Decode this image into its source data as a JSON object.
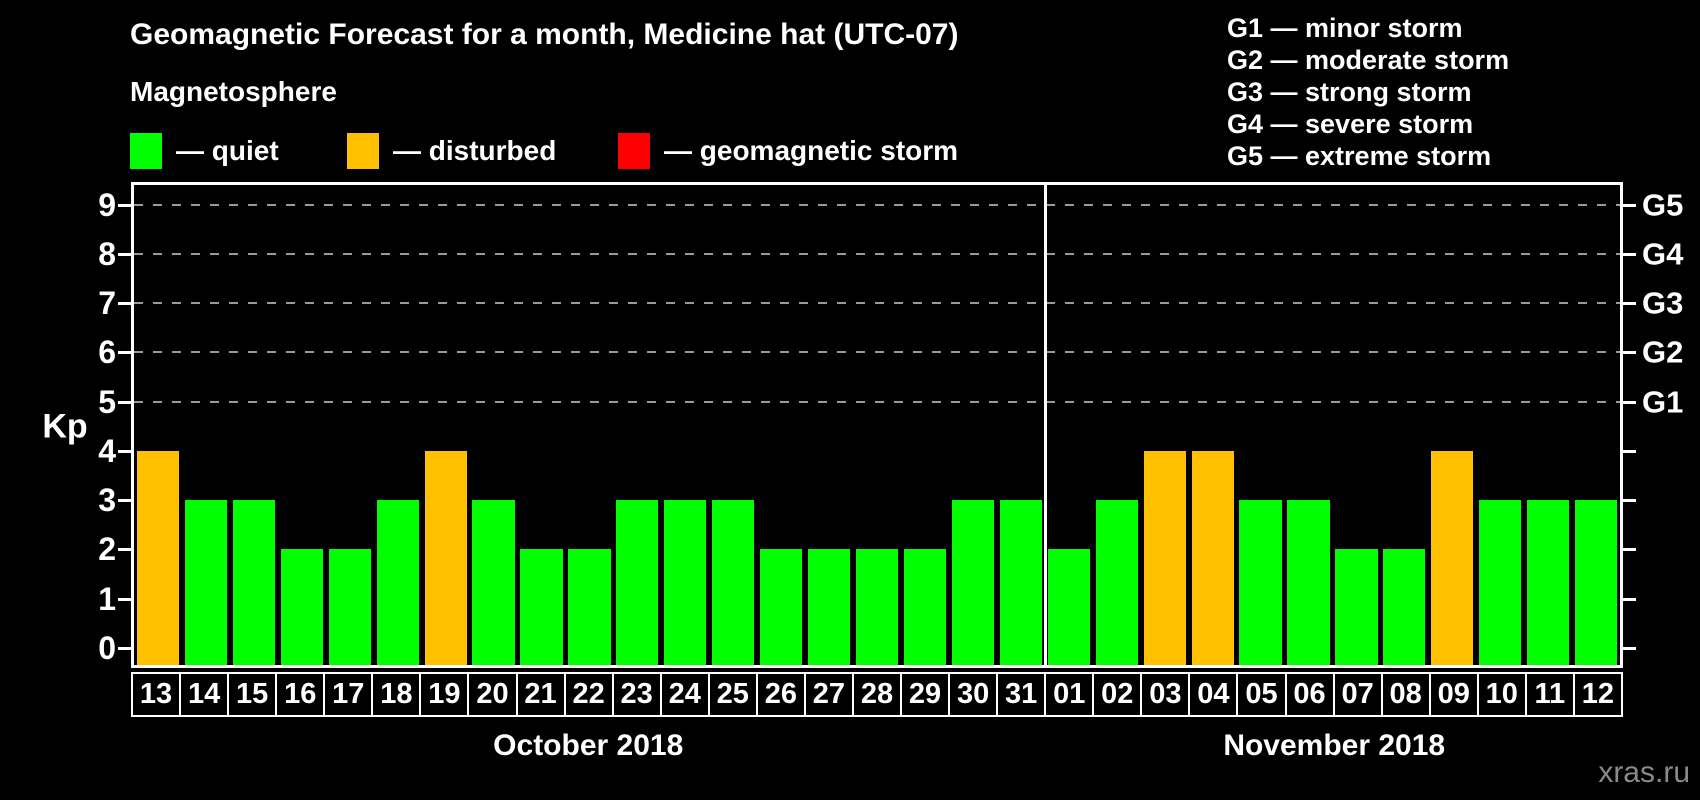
{
  "header": {
    "title": "Geomagnetic Forecast for a month, Medicine hat (UTC-07)",
    "subtitle": "Magnetosphere",
    "legend": [
      {
        "status": "quiet",
        "label": "— quiet"
      },
      {
        "status": "disturbed",
        "label": "— disturbed"
      },
      {
        "status": "storm",
        "label": "— geomagnetic storm"
      }
    ],
    "g_scale_legend": [
      "G1 — minor storm",
      "G2 — moderate storm",
      "G3 — strong storm",
      "G4 — severe storm",
      "G5 — extreme storm"
    ]
  },
  "watermark": "xras.ru",
  "chart_data": {
    "type": "bar",
    "title": "Geomagnetic Forecast for a month, Medicine hat (UTC-07)",
    "ylabel": "Kp",
    "ylim": [
      -0.35,
      9.4
    ],
    "yticks": [
      0,
      1,
      2,
      3,
      4,
      5,
      6,
      7,
      8,
      9
    ],
    "gridline_levels": [
      5,
      6,
      7,
      8,
      9
    ],
    "right_axis": [
      {
        "kp": 5,
        "label": "G1"
      },
      {
        "kp": 6,
        "label": "G2"
      },
      {
        "kp": 7,
        "label": "G3"
      },
      {
        "kp": 8,
        "label": "G4"
      },
      {
        "kp": 9,
        "label": "G5"
      }
    ],
    "status_colors": {
      "quiet": "#00ff00",
      "disturbed": "#ffc000",
      "storm": "#ff0000"
    },
    "months": [
      {
        "label": "October 2018",
        "days": [
          {
            "day": "13",
            "kp": 4,
            "status": "disturbed"
          },
          {
            "day": "14",
            "kp": 3,
            "status": "quiet"
          },
          {
            "day": "15",
            "kp": 3,
            "status": "quiet"
          },
          {
            "day": "16",
            "kp": 2,
            "status": "quiet"
          },
          {
            "day": "17",
            "kp": 2,
            "status": "quiet"
          },
          {
            "day": "18",
            "kp": 3,
            "status": "quiet"
          },
          {
            "day": "19",
            "kp": 4,
            "status": "disturbed"
          },
          {
            "day": "20",
            "kp": 3,
            "status": "quiet"
          },
          {
            "day": "21",
            "kp": 2,
            "status": "quiet"
          },
          {
            "day": "22",
            "kp": 2,
            "status": "quiet"
          },
          {
            "day": "23",
            "kp": 3,
            "status": "quiet"
          },
          {
            "day": "24",
            "kp": 3,
            "status": "quiet"
          },
          {
            "day": "25",
            "kp": 3,
            "status": "quiet"
          },
          {
            "day": "26",
            "kp": 2,
            "status": "quiet"
          },
          {
            "day": "27",
            "kp": 2,
            "status": "quiet"
          },
          {
            "day": "28",
            "kp": 2,
            "status": "quiet"
          },
          {
            "day": "29",
            "kp": 2,
            "status": "quiet"
          },
          {
            "day": "30",
            "kp": 3,
            "status": "quiet"
          },
          {
            "day": "31",
            "kp": 3,
            "status": "quiet"
          }
        ]
      },
      {
        "label": "November 2018",
        "days": [
          {
            "day": "01",
            "kp": 2,
            "status": "quiet"
          },
          {
            "day": "02",
            "kp": 3,
            "status": "quiet"
          },
          {
            "day": "03",
            "kp": 4,
            "status": "disturbed"
          },
          {
            "day": "04",
            "kp": 4,
            "status": "disturbed"
          },
          {
            "day": "05",
            "kp": 3,
            "status": "quiet"
          },
          {
            "day": "06",
            "kp": 3,
            "status": "quiet"
          },
          {
            "day": "07",
            "kp": 2,
            "status": "quiet"
          },
          {
            "day": "08",
            "kp": 2,
            "status": "quiet"
          },
          {
            "day": "09",
            "kp": 4,
            "status": "disturbed"
          },
          {
            "day": "10",
            "kp": 3,
            "status": "quiet"
          },
          {
            "day": "11",
            "kp": 3,
            "status": "quiet"
          },
          {
            "day": "12",
            "kp": 3,
            "status": "quiet"
          }
        ]
      }
    ]
  }
}
